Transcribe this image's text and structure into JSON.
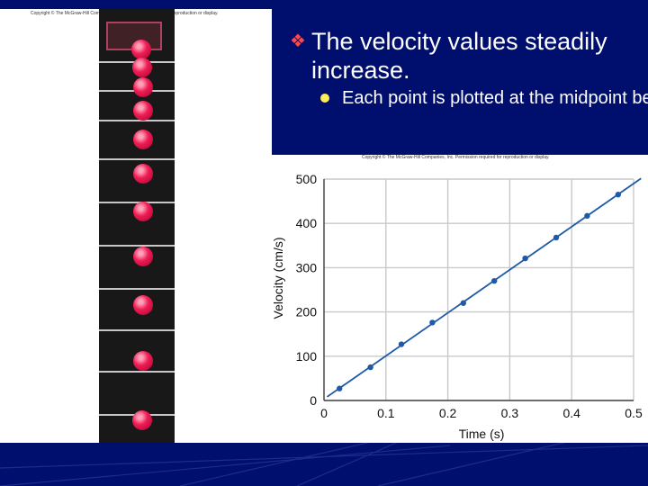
{
  "bullets": [
    {
      "text": "The velocity values steadily increase."
    },
    {
      "text": "Each point is plotted at the midpoint between the two times."
    }
  ],
  "photo": {
    "copyright": "Copyright © The McGraw-Hill Companies, Inc. Permission required for reproduction or display.",
    "ball_color": "#e8174d"
  },
  "chart_data": {
    "type": "line",
    "copyright": "Copyright © The McGraw-Hill Companies, Inc. Permission required for reproduction or display.",
    "xlabel": "Time (s)",
    "ylabel": "Velocity (cm/s)",
    "xlim": [
      0,
      0.5
    ],
    "ylim": [
      0,
      500
    ],
    "xticks": [
      "0",
      "0.1",
      "0.2",
      "0.3",
      "0.4",
      "0.5"
    ],
    "yticks": [
      "0",
      "100",
      "200",
      "300",
      "400",
      "500"
    ],
    "grid": true,
    "line_color": "#1f5aa8",
    "series": [
      {
        "x": [
          0.025,
          0.075,
          0.125,
          0.175,
          0.225,
          0.275,
          0.325,
          0.375,
          0.425,
          0.475
        ],
        "y": [
          27,
          75,
          127,
          176,
          220,
          270,
          321,
          368,
          417,
          465
        ]
      }
    ]
  }
}
